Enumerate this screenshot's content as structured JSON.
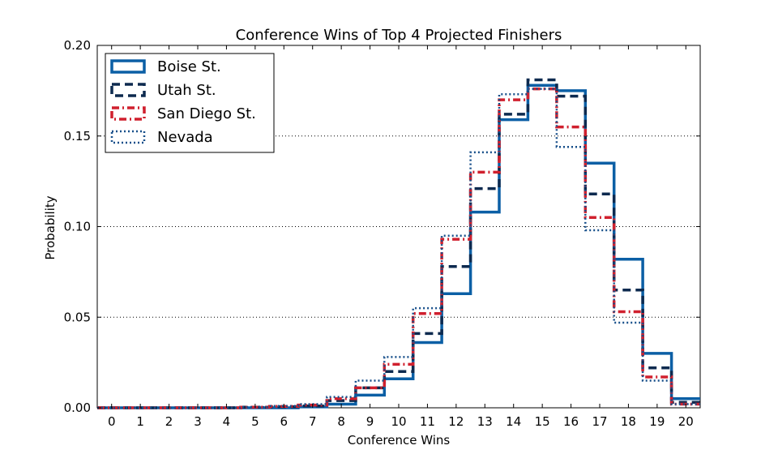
{
  "chart_data": {
    "type": "step",
    "title": "Conference Wins of Top 4 Projected Finishers",
    "xlabel": "Conference Wins",
    "ylabel": "Probability",
    "xlim": [
      -0.5,
      20.5
    ],
    "ylim": [
      0,
      0.2
    ],
    "grid": "y dotted",
    "legend_position": "top-left",
    "x_ticks": [
      0,
      1,
      2,
      3,
      4,
      5,
      6,
      7,
      8,
      9,
      10,
      11,
      12,
      13,
      14,
      15,
      16,
      17,
      18,
      19,
      20
    ],
    "y_ticks": [
      "0.00",
      "0.05",
      "0.10",
      "0.15",
      "0.20"
    ],
    "x": [
      0,
      1,
      2,
      3,
      4,
      5,
      6,
      7,
      8,
      9,
      10,
      11,
      12,
      13,
      14,
      15,
      16,
      17,
      18,
      19,
      20
    ],
    "series": [
      {
        "name": "Boise St.",
        "color": "#0b5fa5",
        "style": "solid",
        "values": [
          0,
          0,
          0,
          0,
          0,
          0,
          0,
          0.0005,
          0.002,
          0.007,
          0.016,
          0.036,
          0.063,
          0.108,
          0.159,
          0.178,
          0.175,
          0.135,
          0.082,
          0.03,
          0.005
        ]
      },
      {
        "name": "Utah St.",
        "color": "#0d2a4f",
        "style": "dashed",
        "values": [
          0,
          0,
          0,
          0,
          0,
          0.0003,
          0.0006,
          0.001,
          0.004,
          0.011,
          0.02,
          0.041,
          0.078,
          0.121,
          0.162,
          0.181,
          0.172,
          0.118,
          0.065,
          0.022,
          0.003
        ]
      },
      {
        "name": "San Diego St.",
        "color": "#d0202e",
        "style": "dashdot",
        "values": [
          0,
          0,
          0,
          0,
          0,
          0.0003,
          0.0008,
          0.0015,
          0.005,
          0.011,
          0.024,
          0.052,
          0.093,
          0.13,
          0.17,
          0.176,
          0.155,
          0.105,
          0.053,
          0.017,
          0.002
        ]
      },
      {
        "name": "Nevada",
        "color": "#174f8a",
        "style": "dotted",
        "values": [
          0,
          0,
          0,
          0,
          0,
          0.0004,
          0.001,
          0.002,
          0.006,
          0.015,
          0.028,
          0.055,
          0.095,
          0.141,
          0.173,
          0.176,
          0.144,
          0.098,
          0.047,
          0.015,
          0.002
        ]
      }
    ]
  }
}
